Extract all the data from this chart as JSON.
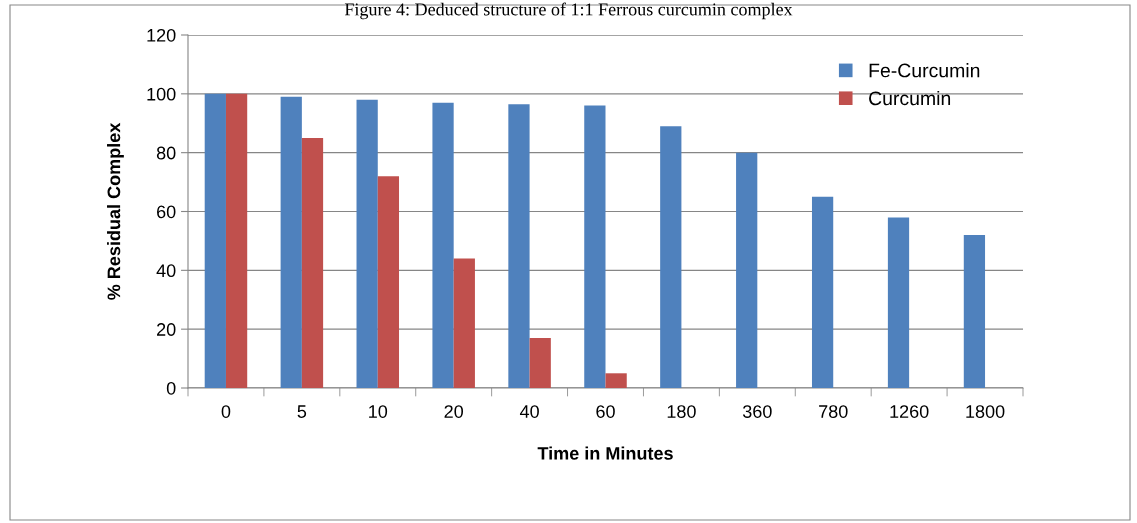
{
  "chart_data": {
    "type": "bar",
    "annotations": [
      "Figure 4: Deduced structure of 1:1 Ferrous curcumin complex"
    ],
    "xlabel": "Time in Minutes",
    "ylabel": "% Residual Complex",
    "categories": [
      "0",
      "5",
      "10",
      "20",
      "40",
      "60",
      "180",
      "360",
      "780",
      "1260",
      "1800"
    ],
    "series": [
      {
        "name": "Fe-Curcumin",
        "color": "#4f81bd",
        "values": [
          100,
          99,
          98,
          97,
          96.5,
          96,
          89,
          80,
          65,
          58,
          52
        ]
      },
      {
        "name": "Curcumin",
        "color": "#c0504d",
        "values": [
          100,
          85,
          72,
          44,
          17,
          5,
          null,
          null,
          null,
          null,
          null
        ]
      }
    ],
    "ylim": [
      0,
      120
    ],
    "yticks": [
      0,
      20,
      40,
      60,
      80,
      100,
      120
    ],
    "grid": "y",
    "legend": "top right"
  }
}
